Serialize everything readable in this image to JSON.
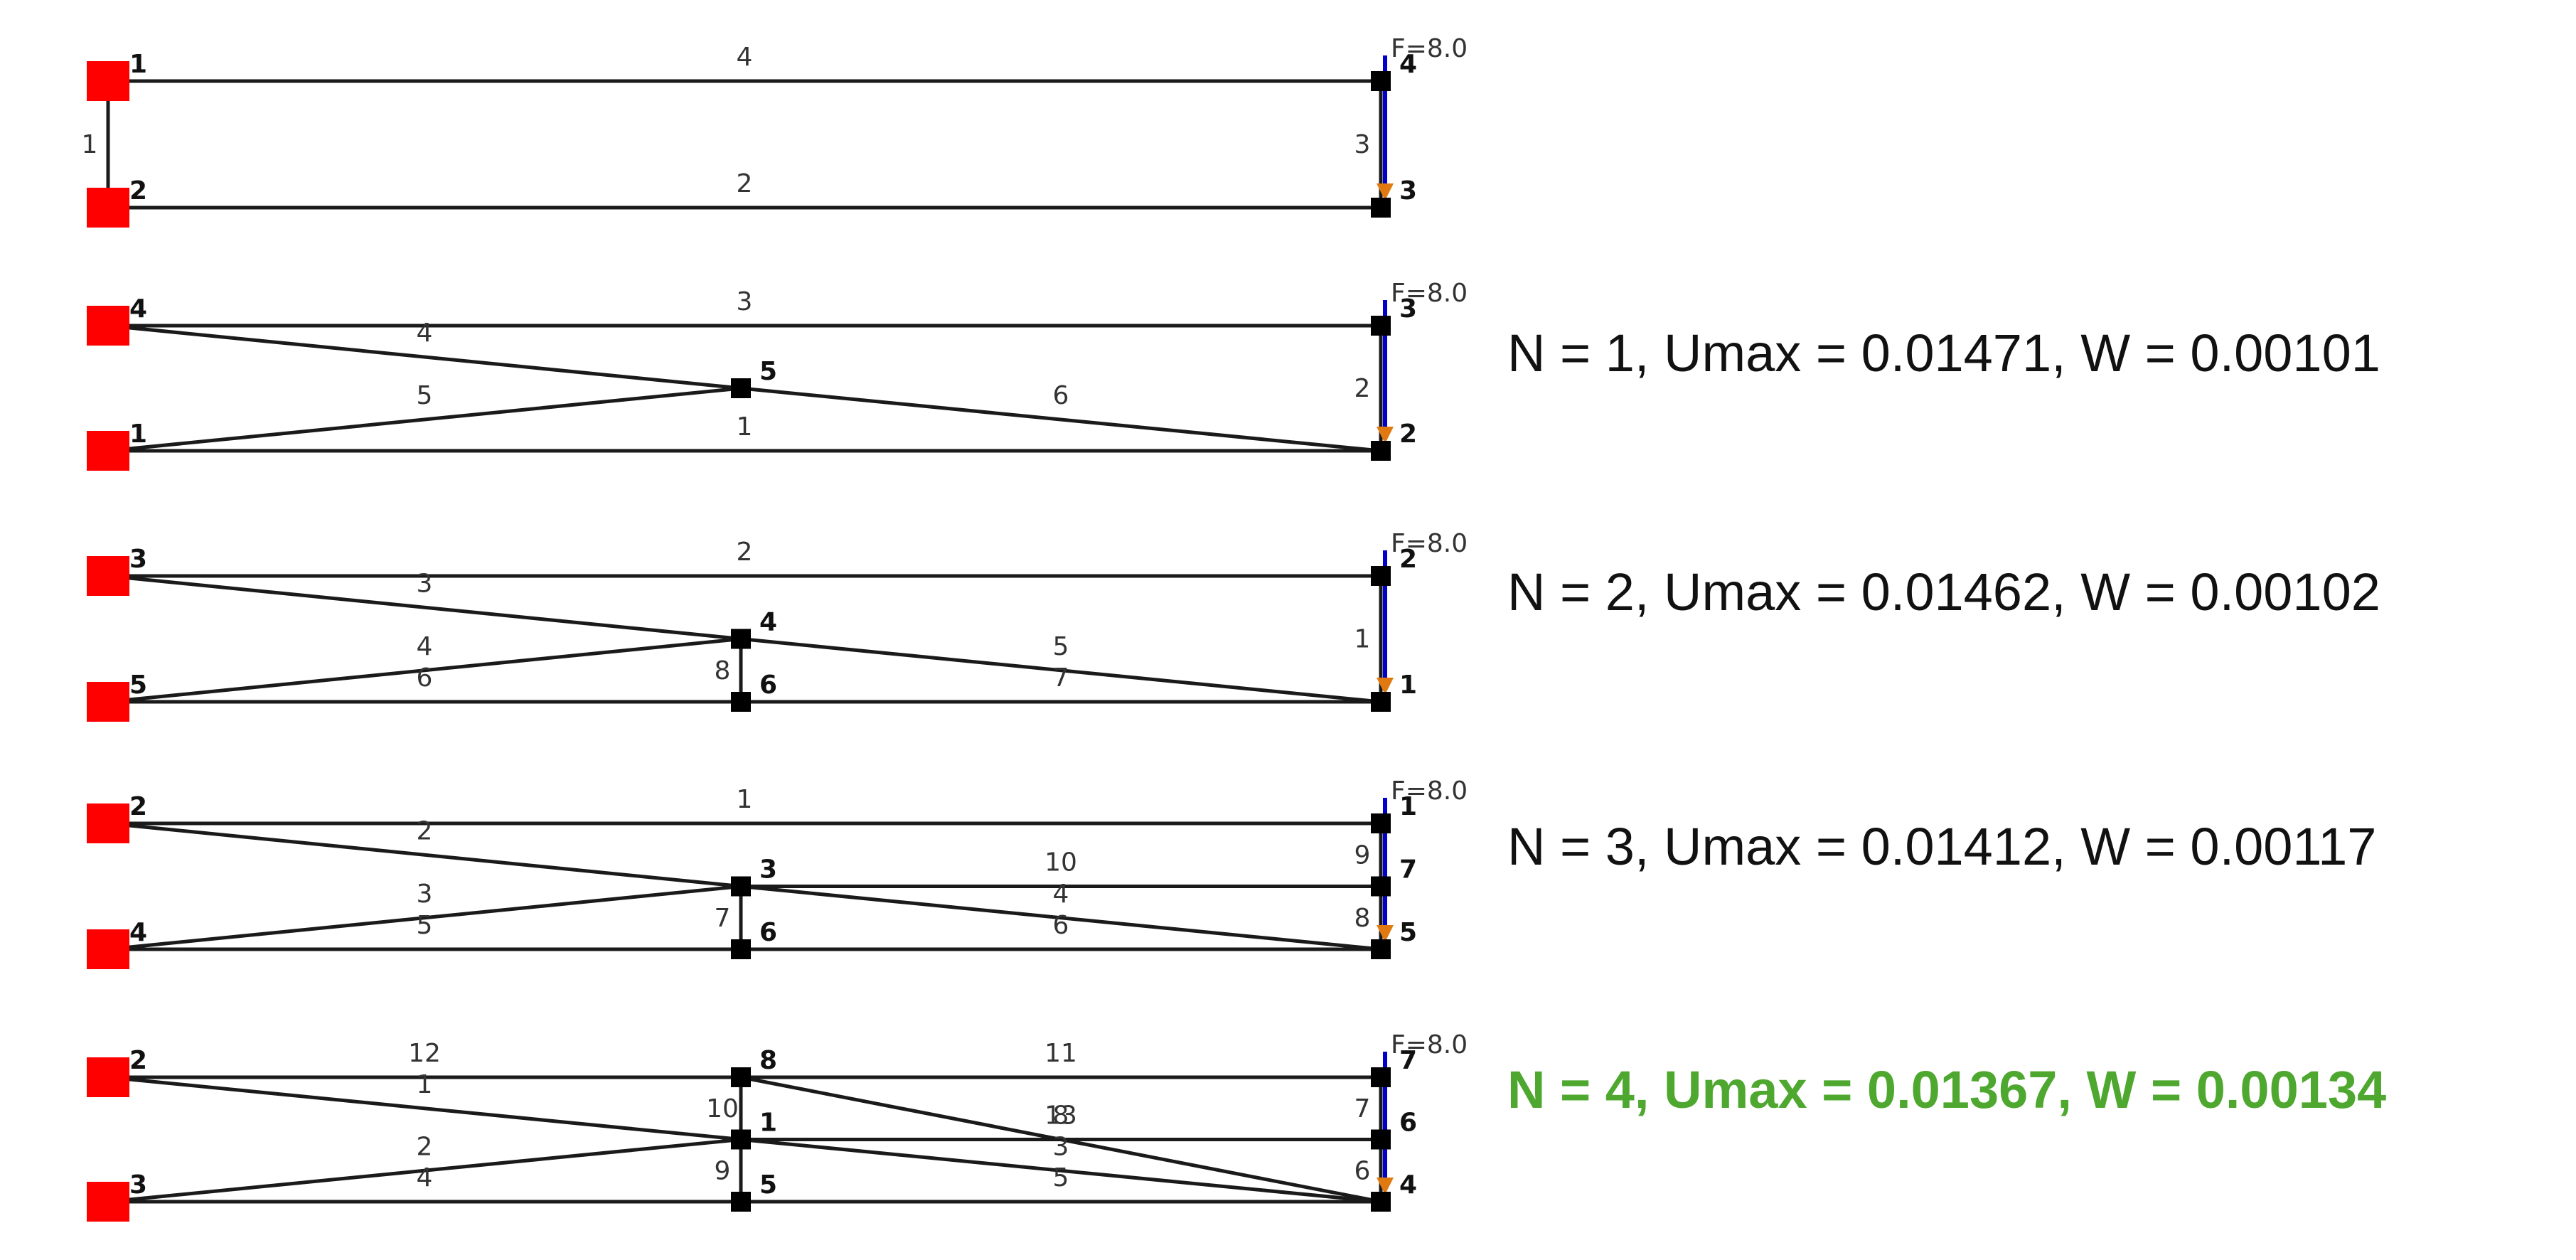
{
  "colors": {
    "support": "#ff0000",
    "member": "#1a1a1a",
    "node": "#000000",
    "force_arrow": "#0000cc",
    "force_head": "#e07a10",
    "best_result": "#4ea72e"
  },
  "results": [
    {
      "text": "N = 1, Umax = 0.01471, W = 0.00101",
      "best": false
    },
    {
      "text": "N = 2, Umax = 0.01462, W = 0.00102",
      "best": false
    },
    {
      "text": "N = 3, Umax = 0.01412, W = 0.00117",
      "best": false
    },
    {
      "text": "N = 4, Umax = 0.01367, W = 0.00134",
      "best": true
    }
  ],
  "trusses": [
    {
      "force_label": "F=8.0",
      "nodes": [
        {
          "label": "1",
          "col": "L",
          "row": "top",
          "support": true
        },
        {
          "label": "2",
          "col": "L",
          "row": "bot",
          "support": true
        },
        {
          "label": "4",
          "col": "R",
          "row": "top"
        },
        {
          "label": "3",
          "col": "R",
          "row": "bot"
        }
      ],
      "members": [
        {
          "a": "L-top",
          "b": "L-bot",
          "label": "1"
        },
        {
          "a": "L-top",
          "b": "R-top",
          "label": "4"
        },
        {
          "a": "L-bot",
          "b": "R-bot",
          "label": "2"
        },
        {
          "a": "R-top",
          "b": "R-bot",
          "label": "3"
        }
      ]
    },
    {
      "force_label": "F=8.0",
      "nodes": [
        {
          "label": "4",
          "col": "L",
          "row": "top",
          "support": true
        },
        {
          "label": "1",
          "col": "L",
          "row": "bot",
          "support": true
        },
        {
          "label": "5",
          "col": "M",
          "row": "mid"
        },
        {
          "label": "3",
          "col": "R",
          "row": "top"
        },
        {
          "label": "2",
          "col": "R",
          "row": "bot"
        }
      ],
      "members": [
        {
          "a": "L-top",
          "b": "R-top",
          "label": "3"
        },
        {
          "a": "L-bot",
          "b": "R-bot",
          "label": "1"
        },
        {
          "a": "L-top",
          "b": "M-mid",
          "label": "4"
        },
        {
          "a": "L-bot",
          "b": "M-mid",
          "label": "5"
        },
        {
          "a": "M-mid",
          "b": "R-bot",
          "label": "6"
        },
        {
          "a": "R-top",
          "b": "R-bot",
          "label": "2"
        }
      ]
    },
    {
      "force_label": "F=8.0",
      "nodes": [
        {
          "label": "3",
          "col": "L",
          "row": "top",
          "support": true
        },
        {
          "label": "5",
          "col": "L",
          "row": "bot",
          "support": true
        },
        {
          "label": "4",
          "col": "M",
          "row": "mid"
        },
        {
          "label": "6",
          "col": "M",
          "row": "bot"
        },
        {
          "label": "2",
          "col": "R",
          "row": "top"
        },
        {
          "label": "1",
          "col": "R",
          "row": "bot"
        }
      ],
      "members": [
        {
          "a": "L-top",
          "b": "R-top",
          "label": "2"
        },
        {
          "a": "L-top",
          "b": "M-mid",
          "label": "3"
        },
        {
          "a": "L-bot",
          "b": "M-mid",
          "label": "4"
        },
        {
          "a": "L-bot",
          "b": "M-bot",
          "label": "6"
        },
        {
          "a": "M-mid",
          "b": "R-bot",
          "label": "5"
        },
        {
          "a": "M-bot",
          "b": "R-bot",
          "label": "7"
        },
        {
          "a": "M-mid",
          "b": "M-bot",
          "label": "8"
        },
        {
          "a": "R-top",
          "b": "R-bot",
          "label": "1"
        }
      ]
    },
    {
      "force_label": "F=8.0",
      "nodes": [
        {
          "label": "2",
          "col": "L",
          "row": "top",
          "support": true
        },
        {
          "label": "4",
          "col": "L",
          "row": "bot",
          "support": true
        },
        {
          "label": "3",
          "col": "M",
          "row": "mid"
        },
        {
          "label": "6",
          "col": "M",
          "row": "bot"
        },
        {
          "label": "1",
          "col": "R",
          "row": "top"
        },
        {
          "label": "7",
          "col": "R",
          "row": "mid"
        },
        {
          "label": "5",
          "col": "R",
          "row": "bot"
        }
      ],
      "members": [
        {
          "a": "L-top",
          "b": "R-top",
          "label": "1"
        },
        {
          "a": "L-top",
          "b": "M-mid",
          "label": "2"
        },
        {
          "a": "L-bot",
          "b": "M-mid",
          "label": "3"
        },
        {
          "a": "L-bot",
          "b": "M-bot",
          "label": "5"
        },
        {
          "a": "M-mid",
          "b": "R-mid",
          "label": "10"
        },
        {
          "a": "M-mid",
          "b": "R-bot",
          "label": "4"
        },
        {
          "a": "M-bot",
          "b": "R-bot",
          "label": "6"
        },
        {
          "a": "M-mid",
          "b": "M-bot",
          "label": "7"
        },
        {
          "a": "R-top",
          "b": "R-mid",
          "label": "9"
        },
        {
          "a": "R-mid",
          "b": "R-bot",
          "label": "8"
        }
      ]
    },
    {
      "force_label": "F=8.0",
      "nodes": [
        {
          "label": "2",
          "col": "L",
          "row": "top",
          "support": true
        },
        {
          "label": "3",
          "col": "L",
          "row": "bot",
          "support": true
        },
        {
          "label": "8",
          "col": "M",
          "row": "top"
        },
        {
          "label": "1",
          "col": "M",
          "row": "mid"
        },
        {
          "label": "5",
          "col": "M",
          "row": "bot"
        },
        {
          "label": "7",
          "col": "R",
          "row": "top"
        },
        {
          "label": "6",
          "col": "R",
          "row": "mid"
        },
        {
          "label": "4",
          "col": "R",
          "row": "bot"
        }
      ],
      "members": [
        {
          "a": "L-top",
          "b": "M-top",
          "label": "12"
        },
        {
          "a": "L-top",
          "b": "M-mid",
          "label": "1"
        },
        {
          "a": "L-bot",
          "b": "M-mid",
          "label": "2"
        },
        {
          "a": "L-bot",
          "b": "M-bot",
          "label": "4"
        },
        {
          "a": "M-top",
          "b": "R-top",
          "label": "11"
        },
        {
          "a": "M-top",
          "b": "R-bot",
          "label": "8"
        },
        {
          "a": "M-mid",
          "b": "R-mid",
          "label": "13"
        },
        {
          "a": "M-mid",
          "b": "R-bot",
          "label": "3"
        },
        {
          "a": "M-bot",
          "b": "R-bot",
          "label": "5"
        },
        {
          "a": "M-top",
          "b": "M-mid",
          "label": "10"
        },
        {
          "a": "M-mid",
          "b": "M-bot",
          "label": "9"
        },
        {
          "a": "R-top",
          "b": "R-mid",
          "label": "7"
        },
        {
          "a": "R-mid",
          "b": "R-bot",
          "label": "6"
        }
      ]
    }
  ]
}
